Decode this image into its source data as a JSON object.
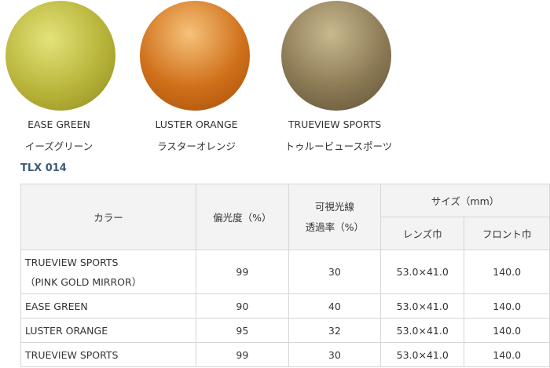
{
  "lenses": [
    {
      "en": "EASE GREEN",
      "ja": "イーズグリーン",
      "color": "#b8b43a"
    },
    {
      "en": "LUSTER ORANGE",
      "ja": "ラスターオレンジ",
      "color": "#d0701a"
    },
    {
      "en": "TRUEVIEW SPORTS",
      "ja": "トゥルービュースポーツ",
      "color": "#8c7a55"
    }
  ],
  "model": "TLX 014",
  "table": {
    "headers": {
      "color": "カラー",
      "polarization": "偏光度（%）",
      "transmission_1": "可視光線",
      "transmission_2": "透過率（%）",
      "size": "サイズ（mm）",
      "lens_width": "レンズ巾",
      "front_width": "フロント巾"
    },
    "rows": [
      {
        "color": "TRUEVIEW SPORTS",
        "color2": "（PINK GOLD MIRROR）",
        "polarization": "99",
        "transmission": "30",
        "lens": "53.0×41.0",
        "front": "140.0"
      },
      {
        "color": "EASE GREEN",
        "polarization": "90",
        "transmission": "40",
        "lens": "53.0×41.0",
        "front": "140.0"
      },
      {
        "color": "LUSTER ORANGE",
        "polarization": "95",
        "transmission": "32",
        "lens": "53.0×41.0",
        "front": "140.0"
      },
      {
        "color": "TRUEVIEW SPORTS",
        "polarization": "99",
        "transmission": "30",
        "lens": "53.0×41.0",
        "front": "140.0"
      }
    ]
  }
}
